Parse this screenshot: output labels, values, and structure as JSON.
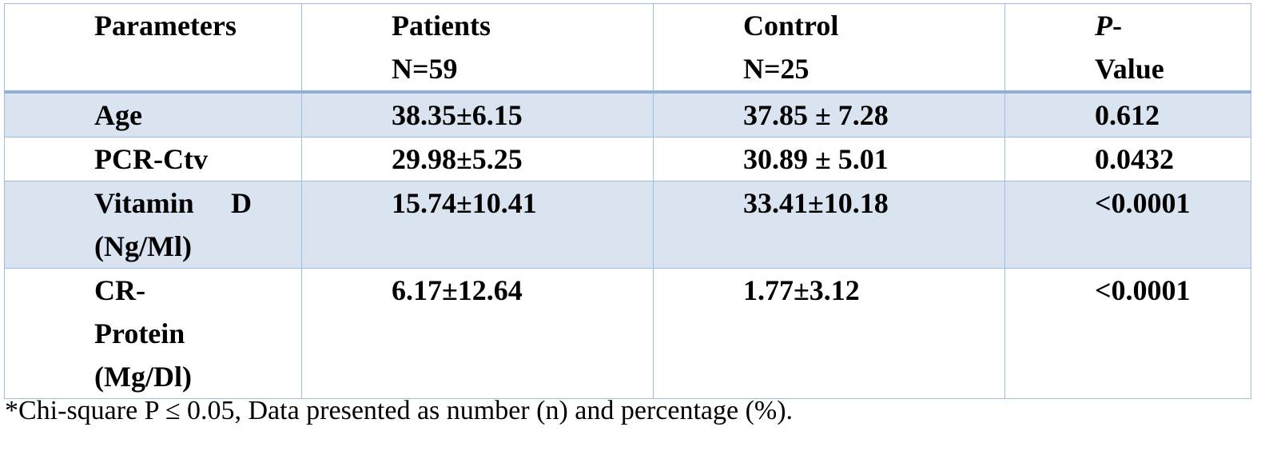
{
  "table": {
    "header": {
      "parameters": "Parameters",
      "patients_line1": "Patients",
      "patients_line2": "N=59",
      "control_line1": "Control",
      "control_line2": "N=25",
      "pvalue_p": "P",
      "pvalue_dash": "-",
      "pvalue_line2": "Value"
    },
    "rows": [
      {
        "param_line1": "Age",
        "patients": "38.35±6.15",
        "control": "37.85 ± 7.28",
        "pvalue": "0.612"
      },
      {
        "param_line1": "PCR-Ctv",
        "patients": "29.98±5.25",
        "control": "30.89 ± 5.01",
        "pvalue": "0.0432"
      },
      {
        "param_word1": "Vitamin",
        "param_word2": "D",
        "param_line2": "(Ng/Ml)",
        "patients": "15.74±10.41",
        "control": "33.41±10.18",
        "pvalue": "<0.0001"
      },
      {
        "param_line1": "CR-",
        "param_line2": "Protein",
        "param_line3": "(Mg/Dl)",
        "patients": "6.17±12.64",
        "control": "1.77±3.12",
        "pvalue": "<0.0001"
      }
    ]
  },
  "footnote": "*Chi-square P ≤ 0.05, Data presented as number (n) and percentage (%)."
}
